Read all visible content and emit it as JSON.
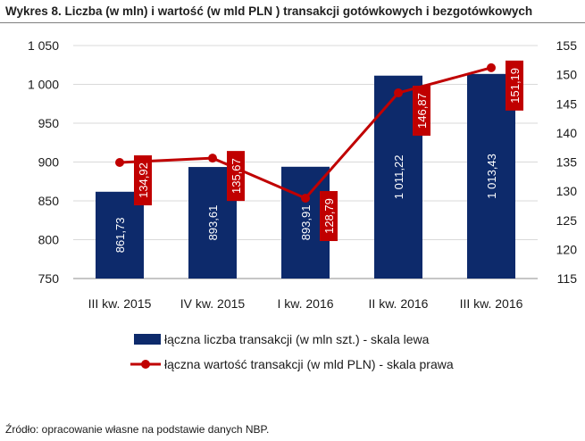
{
  "figure": {
    "title": "Wykres 8. Liczba (w mln) i wartość (w mld PLN ) transakcji gotówkowych i bezgotówkowych",
    "source": "Źródło: opracowanie własne na podstawie danych NBP."
  },
  "chart_data": {
    "type": "bar+line",
    "title": "Wykres 8. Liczba (w mln) i wartość (w mld PLN ) transakcji gotówkowych i bezgotówkowych",
    "categories": [
      "III kw. 2015",
      "IV kw. 2015",
      "I kw. 2016",
      "II kw. 2016",
      "III kw. 2016"
    ],
    "series": [
      {
        "name": "łączna liczba transakcji (w mln szt.) - skala lewa",
        "type": "bar",
        "axis": "left",
        "color": "#0d2a6b",
        "values": [
          861.73,
          893.61,
          893.91,
          1011.22,
          1013.43
        ],
        "labels": [
          "861,73",
          "893,61",
          "893,91",
          "1 011,22",
          "1 013,43"
        ]
      },
      {
        "name": "łączna wartość transakcji (w mld PLN) - skala prawa",
        "type": "line",
        "axis": "right",
        "color": "#c00000",
        "values": [
          134.92,
          135.67,
          128.79,
          146.87,
          151.19
        ],
        "labels": [
          "134,92",
          "135,67",
          "128,79",
          "146,87",
          "151,19"
        ]
      }
    ],
    "y_left": {
      "min": 750,
      "max": 1050,
      "step": 50,
      "tick_labels": [
        "750",
        "800",
        "850",
        "900",
        "950",
        "1 000",
        "1 050"
      ]
    },
    "y_right": {
      "min": 115,
      "max": 155,
      "step": 5,
      "tick_labels": [
        "115",
        "120",
        "125",
        "130",
        "135",
        "140",
        "145",
        "150",
        "155"
      ]
    },
    "grid": true,
    "legend_position": "bottom"
  }
}
